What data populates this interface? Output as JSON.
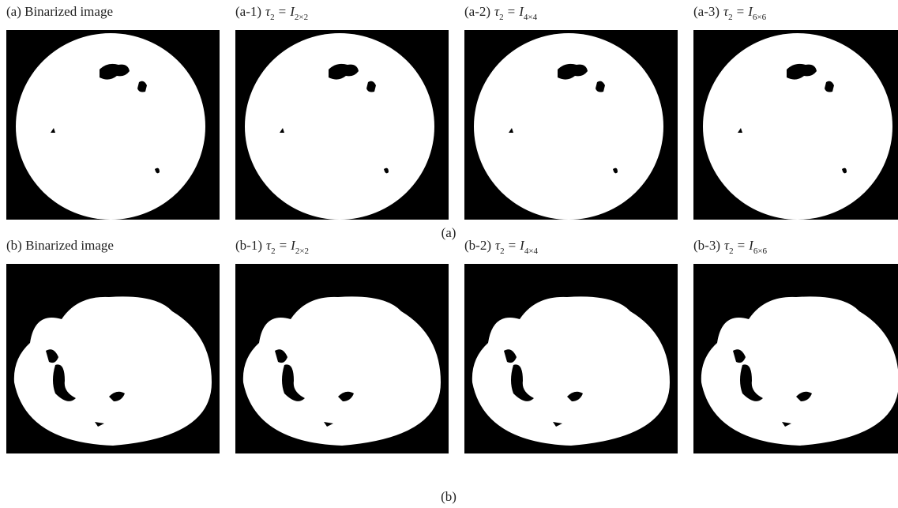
{
  "rows": [
    {
      "caption": "(a)",
      "panels": [
        {
          "label": "(a) Binarized image"
        },
        {
          "prefix": "(a-1)",
          "tau": "τ",
          "tau_sub": "2",
          "eq": "=",
          "i": "I",
          "i_sub": "2×2"
        },
        {
          "prefix": "(a-2)",
          "tau": "τ",
          "tau_sub": "2",
          "eq": "=",
          "i": "I",
          "i_sub": "4×4"
        },
        {
          "prefix": "(a-3)",
          "tau": "τ",
          "tau_sub": "2",
          "eq": "=",
          "i": "I",
          "i_sub": "6×6"
        }
      ]
    },
    {
      "caption": "(b)",
      "panels": [
        {
          "label": "(b) Binarized image"
        },
        {
          "prefix": "(b-1)",
          "tau": "τ",
          "tau_sub": "2",
          "eq": "=",
          "i": "I",
          "i_sub": "2×2"
        },
        {
          "prefix": "(b-2)",
          "tau": "τ",
          "tau_sub": "2",
          "eq": "=",
          "i": "I",
          "i_sub": "4×4"
        },
        {
          "prefix": "(b-3)",
          "tau": "τ",
          "tau_sub": "2",
          "eq": "=",
          "i": "I",
          "i_sub": "6×6"
        }
      ]
    }
  ]
}
